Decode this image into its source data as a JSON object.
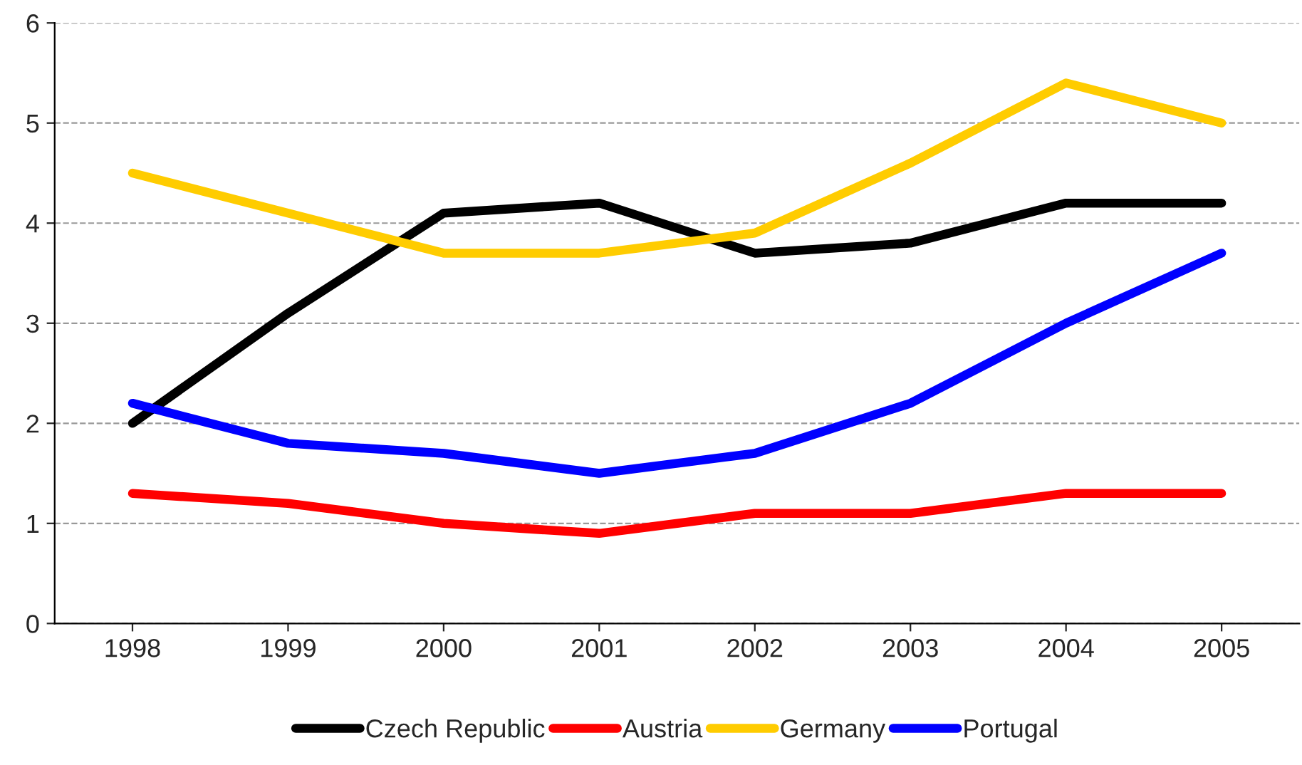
{
  "chart_data": {
    "type": "line",
    "categories": [
      "1998",
      "1999",
      "2000",
      "2001",
      "2002",
      "2003",
      "2004",
      "2005"
    ],
    "series": [
      {
        "name": "Czech Republic",
        "color": "#000000",
        "values": [
          2.0,
          3.1,
          4.1,
          4.2,
          3.7,
          3.8,
          4.2,
          4.2
        ]
      },
      {
        "name": "Austria",
        "color": "#ff0000",
        "values": [
          1.3,
          1.2,
          1.0,
          0.9,
          1.1,
          1.1,
          1.3,
          1.3
        ]
      },
      {
        "name": "Germany",
        "color": "#ffcc00",
        "values": [
          4.5,
          4.1,
          3.7,
          3.7,
          3.9,
          4.6,
          5.4,
          5.0
        ]
      },
      {
        "name": "Portugal",
        "color": "#0000ff",
        "values": [
          2.2,
          1.8,
          1.7,
          1.5,
          1.7,
          2.2,
          3.0,
          3.7
        ]
      }
    ],
    "ylim": [
      0,
      6
    ],
    "yticks": [
      0,
      1,
      2,
      3,
      4,
      5,
      6
    ],
    "grid": "y",
    "legend": "bottom",
    "marker": "none",
    "line_style": "solid"
  }
}
